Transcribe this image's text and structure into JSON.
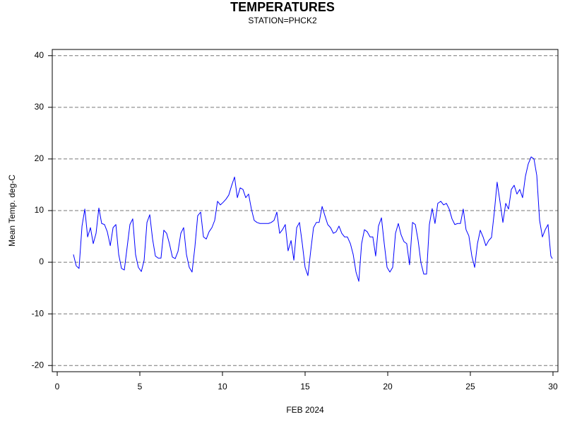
{
  "chart_data": {
    "type": "line",
    "title": "TEMPERATURES",
    "subtitle": "STATION=PHCK2",
    "y_label": "Mean Temp. deg-C",
    "x_label": "FEB 2024",
    "color": "#0000ff",
    "grid": true,
    "xlim": [
      -0.3,
      30.3
    ],
    "ylim": [
      -21.2,
      41.2
    ],
    "xticks": [
      0,
      5,
      10,
      15,
      20,
      25,
      30
    ],
    "yticks": [
      -20,
      -10,
      0,
      10,
      20,
      30,
      40
    ],
    "x": [
      0.98,
      1.15,
      1.32,
      1.5,
      1.67,
      1.84,
      2.01,
      2.18,
      2.35,
      2.52,
      2.69,
      2.86,
      3.03,
      3.21,
      3.38,
      3.55,
      3.72,
      3.89,
      4.06,
      4.23,
      4.4,
      4.57,
      4.74,
      4.91,
      5.09,
      5.26,
      5.43,
      5.6,
      5.77,
      5.94,
      6.11,
      6.28,
      6.45,
      6.62,
      6.79,
      6.97,
      7.14,
      7.31,
      7.48,
      7.65,
      7.82,
      7.99,
      8.16,
      8.33,
      8.5,
      8.68,
      8.85,
      9.02,
      9.19,
      9.36,
      9.53,
      9.7,
      9.87,
      10.04,
      10.21,
      10.38,
      10.56,
      10.73,
      10.9,
      11.07,
      11.24,
      11.41,
      11.58,
      11.75,
      11.92,
      12.09,
      12.27,
      12.44,
      12.61,
      12.78,
      12.95,
      13.12,
      13.29,
      13.46,
      13.63,
      13.8,
      13.97,
      14.15,
      14.32,
      14.49,
      14.66,
      14.83,
      15.0,
      15.17,
      15.34,
      15.51,
      15.68,
      15.85,
      16.03,
      16.2,
      16.37,
      16.54,
      16.71,
      16.88,
      17.05,
      17.22,
      17.39,
      17.56,
      17.74,
      17.91,
      18.08,
      18.25,
      18.42,
      18.59,
      18.76,
      18.93,
      19.1,
      19.27,
      19.44,
      19.62,
      19.79,
      19.96,
      20.13,
      20.3,
      20.47,
      20.64,
      20.81,
      20.98,
      21.15,
      21.32,
      21.5,
      21.67,
      21.84,
      22.01,
      22.18,
      22.35,
      22.52,
      22.69,
      22.86,
      23.03,
      23.21,
      23.38,
      23.55,
      23.72,
      23.89,
      24.06,
      24.23,
      24.4,
      24.57,
      24.74,
      24.91,
      25.09,
      25.26,
      25.43,
      25.6,
      25.77,
      25.94,
      26.11,
      26.28,
      26.45,
      26.62,
      26.79,
      26.97,
      27.14,
      27.31,
      27.48,
      27.65,
      27.82,
      27.99,
      28.16,
      28.33,
      28.5,
      28.68,
      28.85,
      29.02,
      29.19,
      29.36,
      29.53,
      29.7,
      29.87,
      29.96
    ],
    "values": [
      1.5,
      -0.7,
      -1.2,
      7,
      10.3,
      4.9,
      6.7,
      3.6,
      5.6,
      10.5,
      7.5,
      7.3,
      5.9,
      3.2,
      6.7,
      7.3,
      1.5,
      -1.2,
      -1.5,
      2.9,
      7.3,
      8.4,
      1.5,
      -1,
      -1.8,
      0.4,
      7.7,
      9.2,
      4.5,
      1.2,
      0.8,
      0.8,
      6.2,
      5.6,
      3.6,
      1,
      0.7,
      2.1,
      5.6,
      6.7,
      1.5,
      -1,
      -1.9,
      2.9,
      9,
      9.7,
      4.9,
      4.5,
      5.9,
      6.7,
      8.1,
      11.8,
      11.1,
      11.6,
      12.2,
      13,
      14.9,
      16.5,
      12.5,
      14.4,
      14.1,
      12.5,
      13.2,
      10.3,
      8.1,
      7.7,
      7.5,
      7.5,
      7.5,
      7.5,
      7.7,
      8.1,
      9.7,
      5.6,
      6.3,
      7.3,
      2.2,
      4.2,
      0.4,
      6.7,
      7.7,
      3.6,
      -1,
      -2.6,
      2.2,
      6.7,
      7.7,
      7.7,
      10.8,
      9,
      7.3,
      6.7,
      5.6,
      5.9,
      7,
      5.6,
      4.9,
      4.9,
      3.6,
      1.5,
      -1.9,
      -3.7,
      3.6,
      6.3,
      5.9,
      4.9,
      4.9,
      1.2,
      7,
      8.6,
      3.6,
      -1,
      -1.9,
      -1,
      5.6,
      7.5,
      5.3,
      4,
      3.6,
      -0.5,
      7.7,
      7.3,
      4.2,
      -0.1,
      -2.3,
      -2.3,
      7.3,
      10.4,
      7.5,
      11.4,
      11.8,
      11.1,
      11.4,
      10.3,
      8.4,
      7.3,
      7.5,
      7.5,
      10.3,
      6.3,
      5.1,
      1.2,
      -1,
      3.6,
      6.2,
      4.9,
      3.2,
      4.2,
      4.8,
      9.7,
      15.5,
      11.8,
      7.7,
      11.4,
      10.3,
      14.1,
      14.9,
      13.2,
      14.1,
      12.5,
      16.6,
      19,
      20.4,
      20,
      16.8,
      8.1,
      4.9,
      6.3,
      7.3,
      1.2,
      0.7
    ]
  }
}
